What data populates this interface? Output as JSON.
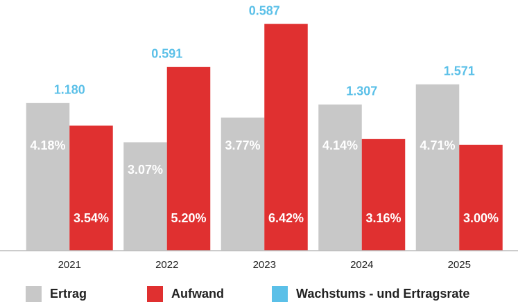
{
  "chart_data": {
    "type": "bar",
    "categories": [
      "2021",
      "2022",
      "2023",
      "2024",
      "2025"
    ],
    "series": [
      {
        "name": "Ertrag",
        "color": "#c8c8c8",
        "values": [
          4.18,
          3.07,
          3.77,
          4.14,
          4.71
        ],
        "value_labels": [
          "4.18%",
          "3.07%",
          "3.77%",
          "4.14%",
          "4.71%"
        ]
      },
      {
        "name": "Aufwand",
        "color": "#e03030",
        "values": [
          3.54,
          5.2,
          6.42,
          3.16,
          3.0
        ],
        "value_labels": [
          "3.54%",
          "5.20%",
          "6.42%",
          "3.16%",
          "3.00%"
        ]
      },
      {
        "name": "Wachstums - und Ertragsrate",
        "color": "#5bc0e8",
        "values": [
          1.18,
          0.591,
          0.587,
          1.307,
          1.571
        ],
        "value_labels": [
          "1.180",
          "0.591",
          "0.587",
          "1.307",
          "1.571"
        ]
      }
    ],
    "ylim": [
      0,
      7
    ]
  }
}
